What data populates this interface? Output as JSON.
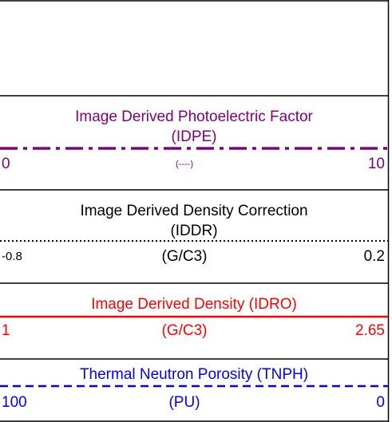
{
  "sections": [
    {
      "title_lines": [
        "Image Derived Photoelectric Factor",
        "(IDPE)"
      ],
      "left": 0,
      "unit": "(----)",
      "right": 10,
      "color": "#800080",
      "line_style": "dash-dot"
    },
    {
      "title_lines": [
        "Image Derived Density Correction",
        "(IDDR)"
      ],
      "left": -0.8,
      "unit": "(G/C3)",
      "right": 0.2,
      "color": "#000000",
      "line_style": "dotted"
    },
    {
      "title_lines": [
        "Image Derived Density (IDRO)"
      ],
      "left": 1,
      "unit": "(G/C3)",
      "right": 2.65,
      "color": "#ff0000",
      "line_style": "solid"
    },
    {
      "title_lines": [
        "Thermal Neutron Porosity (TNPH)"
      ],
      "left": 100,
      "unit": "(PU)",
      "right": 0,
      "color": "#0000ff",
      "line_style": "dashed"
    }
  ]
}
